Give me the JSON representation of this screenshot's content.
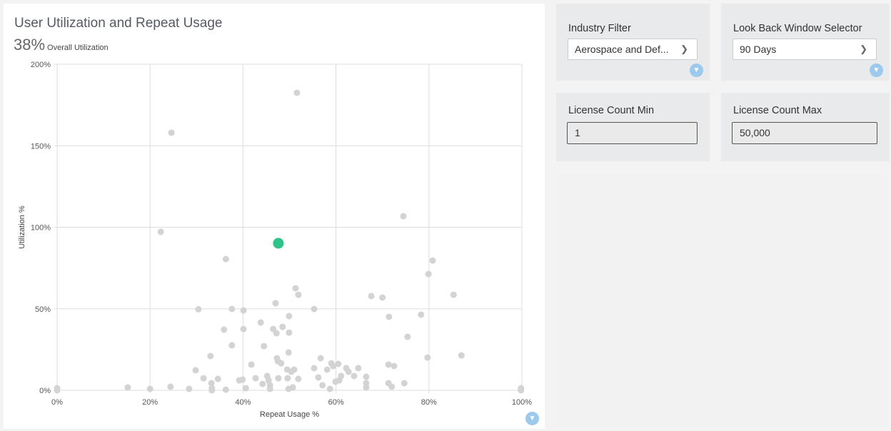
{
  "header": {
    "title": "User Utilization and Repeat Usage",
    "kpi_value": "38%",
    "kpi_label": "Overall Utilization"
  },
  "filters": {
    "industry": {
      "label": "Industry Filter",
      "value": "Aerospace and Def..."
    },
    "lookback": {
      "label": "Look Back Window Selector",
      "value": "90 Days"
    },
    "license_min": {
      "label": "License Count Min",
      "value": "1"
    },
    "license_max": {
      "label": "License Count Max",
      "value": "50,000"
    }
  },
  "icons": {
    "filter": "filter-icon",
    "dropdown": "chevron-down-icon"
  },
  "chart_data": {
    "type": "scatter",
    "title": "User Utilization and Repeat Usage",
    "xlabel": "Repeat Usage %",
    "ylabel": "Utilization %",
    "xlim": [
      0,
      100
    ],
    "ylim": [
      0,
      200
    ],
    "xticks": [
      "0%",
      "20%",
      "40%",
      "60%",
      "80%",
      "100%"
    ],
    "yticks": [
      "0%",
      "50%",
      "100%",
      "150%",
      "200%"
    ],
    "grid": true,
    "point_color": "#d3d3d3",
    "highlight_color": "#2ec38a",
    "highlight": {
      "x": 47.6,
      "y": 90.2
    },
    "points": [
      [
        0,
        1.3
      ],
      [
        0,
        0
      ],
      [
        15.2,
        1.8
      ],
      [
        20,
        0.9
      ],
      [
        24.4,
        2.2
      ],
      [
        28.4,
        0.9
      ],
      [
        24.6,
        158
      ],
      [
        22.3,
        97.2
      ],
      [
        51.6,
        182.5
      ],
      [
        36.3,
        80.5
      ],
      [
        30.4,
        49.7
      ],
      [
        37.6,
        49.9
      ],
      [
        33,
        21
      ],
      [
        29.8,
        12.3
      ],
      [
        31.5,
        7.4
      ],
      [
        33.2,
        4.4
      ],
      [
        33.3,
        1.3
      ],
      [
        33.3,
        0
      ],
      [
        34.6,
        7
      ],
      [
        36.3,
        0.4
      ],
      [
        35.9,
        37.2
      ],
      [
        40.1,
        49
      ],
      [
        40.1,
        37.6
      ],
      [
        37.6,
        27.6
      ],
      [
        39.2,
        6.1
      ],
      [
        39.9,
        6.6
      ],
      [
        40.6,
        1.3
      ],
      [
        41.8,
        15.8
      ],
      [
        42.7,
        7.4
      ],
      [
        43.8,
        41.6
      ],
      [
        44.5,
        27.1
      ],
      [
        44.2,
        3.9
      ],
      [
        45.2,
        8.8
      ],
      [
        45.5,
        6.1
      ],
      [
        45.8,
        3.1
      ],
      [
        45.8,
        0.9
      ],
      [
        47,
        53.4
      ],
      [
        46.5,
        37.6
      ],
      [
        47.2,
        35
      ],
      [
        47.3,
        19.7
      ],
      [
        47.5,
        17.9
      ],
      [
        47.6,
        7.4
      ],
      [
        48.2,
        16.6
      ],
      [
        48.5,
        38.9
      ],
      [
        49.5,
        12.7
      ],
      [
        49.6,
        7.4
      ],
      [
        49.8,
        0.9
      ],
      [
        49.9,
        45.5
      ],
      [
        49.9,
        35.4
      ],
      [
        49.8,
        23.2
      ],
      [
        50.4,
        11.4
      ],
      [
        51,
        12.7
      ],
      [
        50.7,
        1.8
      ],
      [
        51.3,
        62.6
      ],
      [
        51.9,
        58.6
      ],
      [
        51.9,
        7
      ],
      [
        55.3,
        49.9
      ],
      [
        55.3,
        13.6
      ],
      [
        56.7,
        19.7
      ],
      [
        56.2,
        7.9
      ],
      [
        57.1,
        3.1
      ],
      [
        58.1,
        12.7
      ],
      [
        58.7,
        0.9
      ],
      [
        59,
        16.6
      ],
      [
        59.4,
        14.9
      ],
      [
        59.9,
        5.3
      ],
      [
        60.5,
        16.2
      ],
      [
        60.7,
        6.1
      ],
      [
        61.1,
        8.8
      ],
      [
        62.2,
        13.6
      ],
      [
        62.7,
        11.4
      ],
      [
        63.9,
        8.8
      ],
      [
        64.8,
        13.6
      ],
      [
        66.5,
        8.3
      ],
      [
        66.5,
        4.4
      ],
      [
        66.5,
        1.8
      ],
      [
        67.6,
        57.8
      ],
      [
        70,
        56.9
      ],
      [
        71.4,
        45.1
      ],
      [
        71.3,
        15.8
      ],
      [
        72.5,
        14.9
      ],
      [
        71.3,
        4.4
      ],
      [
        72,
        2.2
      ],
      [
        74.5,
        106.8
      ],
      [
        74.7,
        4.4
      ],
      [
        75.4,
        32.8
      ],
      [
        78.3,
        46.4
      ],
      [
        79.9,
        71.3
      ],
      [
        79.7,
        20.1
      ],
      [
        80.8,
        79.6
      ],
      [
        85.3,
        58.6
      ],
      [
        87,
        21.4
      ],
      [
        99.8,
        1.3
      ],
      [
        99.8,
        0
      ]
    ]
  }
}
